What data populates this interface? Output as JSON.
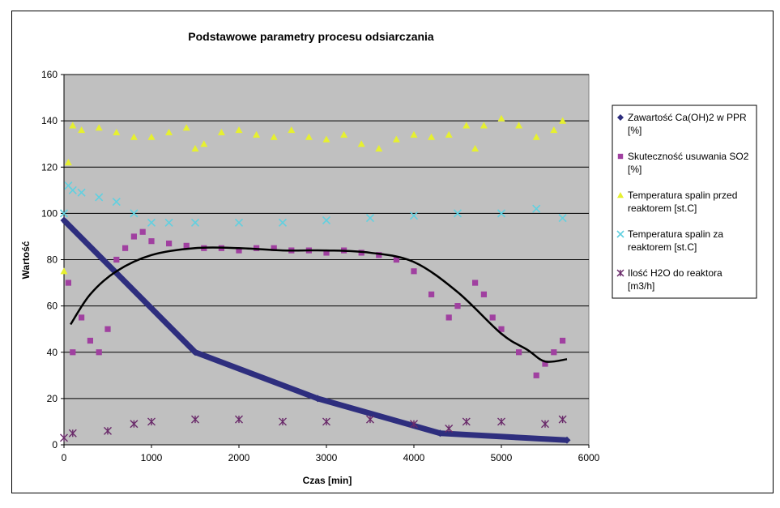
{
  "chart_data": {
    "type": "scatter",
    "title": "Podstawowe parametry procesu odsiarczania",
    "xlabel": "Czas [min]",
    "ylabel": "Wartość",
    "xlim": [
      0,
      6000
    ],
    "ylim": [
      0,
      160
    ],
    "xticks": [
      "0",
      "1000",
      "2000",
      "3000",
      "4000",
      "5000",
      "6000"
    ],
    "yticks": [
      "0",
      "20",
      "40",
      "60",
      "80",
      "100",
      "120",
      "140",
      "160"
    ],
    "grid": "horizontal",
    "legend_position": "right",
    "plot_background": "#c0c0c0",
    "series": [
      {
        "name": "Zawartość Ca(OH)2 w PPR [%]",
        "marker": "diamond",
        "color": "#2e2e7e",
        "x": [
          0,
          1500,
          2900,
          4300,
          5750
        ],
        "y": [
          97,
          40,
          20,
          5,
          2
        ]
      },
      {
        "name": "Skuteczność usuwania SO2 [%]",
        "marker": "square",
        "color": "#a040a0",
        "x": [
          50,
          100,
          200,
          300,
          400,
          500,
          600,
          700,
          800,
          900,
          1000,
          1200,
          1400,
          1600,
          1800,
          2000,
          2200,
          2400,
          2600,
          2800,
          3000,
          3200,
          3400,
          3600,
          3800,
          4000,
          4200,
          4400,
          4500,
          4700,
          4800,
          4900,
          5000,
          5200,
          5400,
          5500,
          5600,
          5700
        ],
        "y": [
          70,
          40,
          55,
          45,
          40,
          50,
          80,
          85,
          90,
          92,
          88,
          87,
          86,
          85,
          85,
          84,
          85,
          85,
          84,
          84,
          83,
          84,
          83,
          82,
          80,
          75,
          65,
          55,
          60,
          70,
          65,
          55,
          50,
          40,
          30,
          35,
          40,
          45
        ]
      },
      {
        "name": "Temperatura spalin przed reaktorem [st.C]",
        "marker": "triangle",
        "color": "#e6f030",
        "x": [
          0,
          50,
          100,
          200,
          400,
          600,
          800,
          1000,
          1200,
          1400,
          1500,
          1600,
          1800,
          2000,
          2200,
          2400,
          2600,
          2800,
          3000,
          3200,
          3400,
          3600,
          3800,
          4000,
          4200,
          4400,
          4600,
          4700,
          4800,
          5000,
          5200,
          5400,
          5600,
          5700
        ],
        "y": [
          75,
          122,
          138,
          136,
          137,
          135,
          133,
          133,
          135,
          137,
          128,
          130,
          135,
          136,
          134,
          133,
          136,
          133,
          132,
          134,
          130,
          128,
          132,
          134,
          133,
          134,
          138,
          128,
          138,
          141,
          138,
          133,
          136,
          140
        ]
      },
      {
        "name": "Temperatura spalin za reaktorem [st.C]",
        "marker": "x",
        "color": "#60d0e0",
        "x": [
          0,
          50,
          100,
          200,
          400,
          600,
          800,
          1000,
          1200,
          1500,
          2000,
          2500,
          3000,
          3500,
          4000,
          4500,
          5000,
          5400,
          5700
        ],
        "y": [
          100,
          112,
          110,
          109,
          107,
          105,
          100,
          96,
          96,
          96,
          96,
          96,
          97,
          98,
          99,
          100,
          100,
          102,
          98
        ]
      },
      {
        "name": "Ilość H2O do reaktora [m3/h]",
        "marker": "star",
        "color": "#6a2a6a",
        "x": [
          0,
          100,
          500,
          800,
          1000,
          1500,
          2000,
          2500,
          3000,
          3500,
          4000,
          4400,
          4600,
          5000,
          5500,
          5700
        ],
        "y": [
          3,
          5,
          6,
          9,
          10,
          11,
          11,
          10,
          10,
          11,
          9,
          7,
          10,
          10,
          9,
          11
        ]
      },
      {
        "name": "",
        "type": "line",
        "color": "#000000",
        "x": [
          75,
          300,
          600,
          1000,
          1500,
          2000,
          2500,
          3000,
          3500,
          4000,
          4500,
          5000,
          5300,
          5500,
          5750
        ],
        "y": [
          52,
          65,
          75,
          82,
          85,
          85,
          84,
          84,
          83,
          79,
          66,
          48,
          41,
          36,
          37
        ]
      }
    ]
  }
}
